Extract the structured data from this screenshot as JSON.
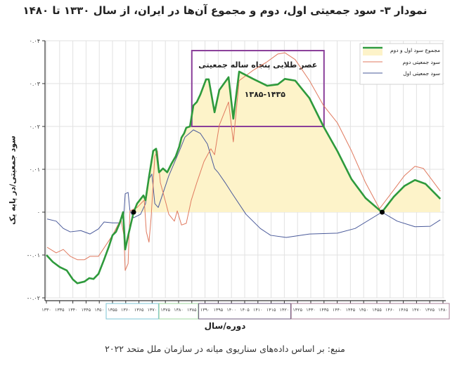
{
  "title": "نمودار ۳- سود جمعیتی اول، دوم و مجموع آن‌ها در ایران، از سال ۱۳۳۰ تا ۱۴۸۰",
  "source": "منبع: بر اساس داده‌های سناریوی میانه در سازمان ملل متحد ۲۰۲۲",
  "chart_data": {
    "type": "line",
    "ylabel": "سود جمعیتی/در پایه یک",
    "xlabel": "دوره/سال",
    "xlim": [
      1330,
      1480
    ],
    "ylim": [
      -0.02,
      0.04
    ],
    "grid": true,
    "legend_placement": "top-right",
    "y_ticks": [
      0.04,
      0.03,
      0.02,
      0.01,
      0,
      -0.01,
      -0.02
    ],
    "y_tick_labels": [
      "۰.۰۴",
      "۰.۰۳",
      "۰.۰۲",
      "۰.۰۱",
      "۰",
      "-۰.۰۱",
      "-۰.۰۲"
    ],
    "x_ticks": [
      1330,
      1335,
      1340,
      1345,
      1350,
      1355,
      1360,
      1365,
      1370,
      1375,
      1380,
      1385,
      1390,
      1395,
      1400,
      1405,
      1410,
      1415,
      1420,
      1425,
      1430,
      1435,
      1440,
      1445,
      1450,
      1455,
      1460,
      1465,
      1470,
      1475,
      1480
    ],
    "x_tick_labels": [
      "۱۳۳۰",
      "۱۳۳۵",
      "۱۳۴۰",
      "۱۳۴۵",
      "۱۳۵۰",
      "۱۳۵۵",
      "۱۳۶۰",
      "۱۳۶۵",
      "۱۳۷۰",
      "۱۳۷۵",
      "۱۳۸۰",
      "۱۳۸۵",
      "۱۳۹۰",
      "۱۳۹۵",
      "۱۴۰۰",
      "۱۴۰۵",
      "۱۴۱۰",
      "۱۴۱۵",
      "۱۴۲۰",
      "۱۴۲۵",
      "۱۴۳۰",
      "۱۴۳۵",
      "۱۴۴۰",
      "۱۴۴۵",
      "۱۴۵۰",
      "۱۴۵۵",
      "۱۴۶۰",
      "۱۴۶۵",
      "۱۴۷۰",
      "۱۴۷۵",
      "۱۴۸۰"
    ],
    "x_groups": [
      {
        "from": 1355,
        "to": 1370,
        "color": "#7cc6d6"
      },
      {
        "from": 1375,
        "to": 1385,
        "color": "#9fd49f"
      },
      {
        "from": 1390,
        "to": 1420,
        "color": "#6e5a7e"
      },
      {
        "from": 1425,
        "to": 1480,
        "color": "#a98299"
      }
    ],
    "series": [
      {
        "name": "مجموع سود اول و دوم",
        "color": "#2e9a3c",
        "fill": "#fdf3c9",
        "x": [
          1330,
          1332.4,
          1335,
          1337.7,
          1340,
          1341.7,
          1344.4,
          1346.2,
          1347.8,
          1349.7,
          1351.8,
          1353.7,
          1355,
          1356.3,
          1357.7,
          1359,
          1359.8,
          1361.1,
          1363,
          1364.3,
          1366.7,
          1367.5,
          1368.8,
          1370.4,
          1371.5,
          1372.6,
          1374.1,
          1375.7,
          1377.3,
          1378.9,
          1380.3,
          1381.1,
          1382.1,
          1382.9,
          1384.3,
          1385.6,
          1386.9,
          1388.2,
          1390.4,
          1391.4,
          1393.6,
          1395.4,
          1398.9,
          1400.7,
          1402.9,
          1408.2,
          1413.5,
          1417.5,
          1420.2,
          1424.1,
          1429.5,
          1434.8,
          1440.1,
          1445.4,
          1450.7,
          1456.9,
          1461.4,
          1465.4,
          1469.4,
          1473.4,
          1479
        ],
        "y": [
          -0.01,
          -0.0116,
          -0.0128,
          -0.0136,
          -0.0157,
          -0.0166,
          -0.0162,
          -0.0154,
          -0.0156,
          -0.0144,
          -0.0111,
          -0.0079,
          -0.0054,
          -0.0046,
          -0.0026,
          0,
          -0.0087,
          -0.005,
          0,
          0.002,
          0.0039,
          0.0028,
          0.0082,
          0.0143,
          0.0148,
          0.0093,
          0.0102,
          0.0093,
          0.0113,
          0.013,
          0.0154,
          0.0174,
          0.0184,
          0.0197,
          0.02,
          0.0249,
          0.0257,
          0.0274,
          0.031,
          0.031,
          0.0233,
          0.0285,
          0.0315,
          0.0218,
          0.0328,
          0.0311,
          0.0295,
          0.0298,
          0.0311,
          0.0307,
          0.0266,
          0.02,
          0.0142,
          0.0077,
          0.0033,
          0,
          0.0036,
          0.0061,
          0.0075,
          0.0066,
          0.0031
        ]
      },
      {
        "name": "سود جمعیتی دوم",
        "color": "#e07a5f",
        "x": [
          1330.3,
          1333.7,
          1336.4,
          1339,
          1341.7,
          1344.4,
          1346.5,
          1349.7,
          1352.3,
          1355,
          1358.2,
          1359.3,
          1359.8,
          1360.9,
          1361.6,
          1364.3,
          1367,
          1367.8,
          1368.8,
          1369.6,
          1371,
          1372,
          1373.1,
          1374.9,
          1376.3,
          1378.4,
          1379.5,
          1381.1,
          1382.9,
          1384.8,
          1386.9,
          1389.6,
          1392.2,
          1393.6,
          1395.4,
          1398.9,
          1400.7,
          1402.9,
          1408.2,
          1413.5,
          1417.5,
          1420.2,
          1424.1,
          1429.5,
          1434.8,
          1440.1,
          1445.4,
          1450.7,
          1456,
          1461.4,
          1465.4,
          1469.4,
          1472.6,
          1479
        ],
        "y": [
          -0.0082,
          -0.0095,
          -0.0087,
          -0.0103,
          -0.0111,
          -0.0111,
          -0.0103,
          -0.0103,
          -0.0079,
          -0.0054,
          -0.0016,
          -0.0054,
          -0.0136,
          -0.012,
          0.0003,
          0.0011,
          0.0028,
          -0.0046,
          -0.007,
          -0.0013,
          0.013,
          0.0143,
          0.0069,
          0.0028,
          -0.0005,
          -0.0021,
          0.0003,
          -0.003,
          -0.0026,
          0.0028,
          0.0069,
          0.0118,
          0.0148,
          0.0134,
          0.0203,
          0.0257,
          0.0164,
          0.0307,
          0.0331,
          0.0351,
          0.0369,
          0.0372,
          0.0356,
          0.0307,
          0.0249,
          0.0208,
          0.0143,
          0.0069,
          0.0008,
          0.0052,
          0.0085,
          0.0107,
          0.0102,
          0.0049
        ]
      },
      {
        "name": "سود جمعیتی اول",
        "color": "#4a5a9a",
        "x": [
          1330.3,
          1333.7,
          1336.4,
          1339,
          1343,
          1346.5,
          1349.7,
          1351.8,
          1355,
          1357.7,
          1359.3,
          1359.8,
          1360.9,
          1361.6,
          1363,
          1365.6,
          1367.5,
          1368.8,
          1369.9,
          1371,
          1372.3,
          1376.3,
          1380.3,
          1382.4,
          1385.6,
          1388.2,
          1390.9,
          1393.6,
          1394.9,
          1397.6,
          1400.2,
          1405.5,
          1410.9,
          1414.8,
          1420.7,
          1429.5,
          1440.1,
          1446.8,
          1456.9,
          1462.7,
          1469.4,
          1475.2,
          1479
        ],
        "y": [
          -0.0016,
          -0.0021,
          -0.0038,
          -0.0046,
          -0.0043,
          -0.0051,
          -0.0039,
          -0.0023,
          -0.0025,
          -0.0025,
          -0.0005,
          0.0043,
          0.0046,
          0.0003,
          -0.0013,
          -0.0005,
          0.002,
          0.0077,
          0.0089,
          0.002,
          0.0011,
          0.0085,
          0.0143,
          0.0175,
          0.0192,
          0.0184,
          0.0159,
          0.0102,
          0.0093,
          0.0069,
          0.0044,
          -0.0005,
          -0.0038,
          -0.0054,
          -0.0059,
          -0.0051,
          -0.0049,
          -0.0038,
          0,
          -0.0021,
          -0.0034,
          -0.0033,
          -0.0018
        ]
      }
    ],
    "markers": [
      {
        "x": 1363,
        "y": 0
      },
      {
        "x": 1457,
        "y": 0
      }
    ],
    "annotation": {
      "text": "عصر طلایی پنجاه ساله جمعیتی",
      "range_text": "۱۳۸۵-۱۴۳۵",
      "x_from": 1385,
      "x_to": 1435,
      "y_from": 0.02,
      "y_to": 0.0377,
      "color": "#8a3f9a"
    }
  }
}
